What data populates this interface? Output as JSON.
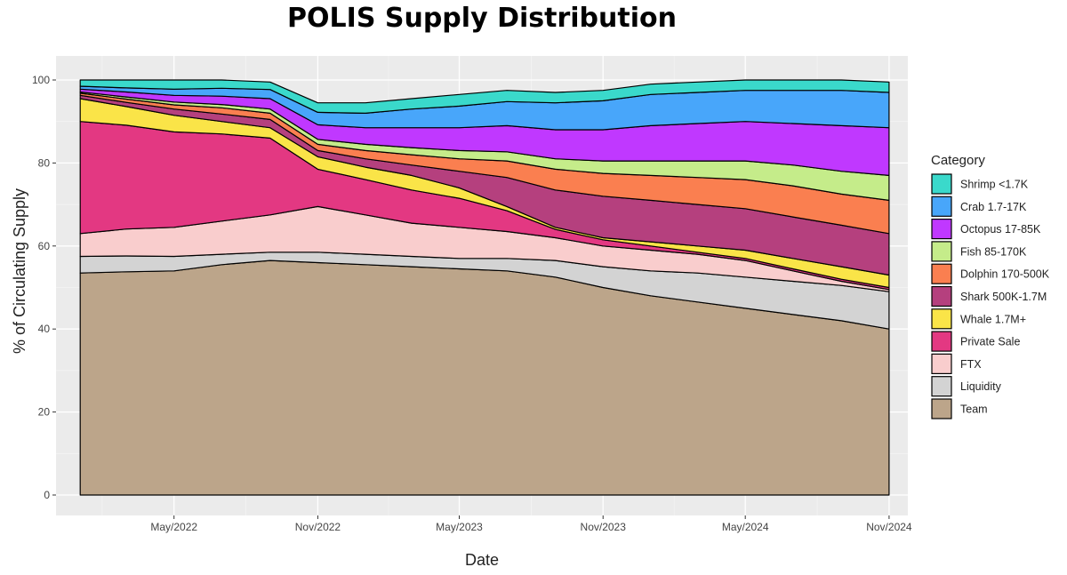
{
  "chart_data": {
    "type": "area",
    "stacked": true,
    "title": "POLIS Supply Distribution",
    "xlabel": "Date",
    "ylabel": "% of Circulating Supply",
    "ylim": [
      0,
      100
    ],
    "yticks": [
      0,
      20,
      40,
      60,
      80,
      100
    ],
    "xlim": [
      "2021-12-01",
      "2024-11-25"
    ],
    "xticks": [
      {
        "date": "2022-05-01",
        "label": "May/2022"
      },
      {
        "date": "2022-11-01",
        "label": "Nov/2022"
      },
      {
        "date": "2023-05-01",
        "label": "May/2023"
      },
      {
        "date": "2023-11-01",
        "label": "Nov/2023"
      },
      {
        "date": "2024-05-01",
        "label": "May/2024"
      },
      {
        "date": "2024-11-01",
        "label": "Nov/2024"
      }
    ],
    "grid": true,
    "legend_position": "right",
    "legend_title": "Category",
    "x": [
      "2022-01-01",
      "2022-03-01",
      "2022-05-01",
      "2022-07-01",
      "2022-09-01",
      "2022-11-01",
      "2023-01-01",
      "2023-03-01",
      "2023-05-01",
      "2023-07-01",
      "2023-09-01",
      "2023-11-01",
      "2024-01-01",
      "2024-03-01",
      "2024-05-01",
      "2024-07-01",
      "2024-09-01",
      "2024-11-01"
    ],
    "series": [
      {
        "name": "Team",
        "color": "#BCA58A",
        "values": [
          53.5,
          53.8,
          54.0,
          55.5,
          56.5,
          56.0,
          55.5,
          55.0,
          54.5,
          54.0,
          52.5,
          50.0,
          48.0,
          46.5,
          45.0,
          43.5,
          42.0,
          40.0
        ]
      },
      {
        "name": "Liquidity",
        "color": "#D3D3D3",
        "values": [
          4.0,
          3.8,
          3.5,
          2.5,
          2.0,
          2.5,
          2.5,
          2.5,
          2.5,
          3.0,
          4.0,
          5.0,
          6.0,
          7.0,
          7.5,
          8.0,
          8.5,
          9.0
        ]
      },
      {
        "name": "FTX",
        "color": "#F9CDCD",
        "values": [
          5.5,
          6.5,
          7.0,
          8.0,
          9.0,
          11.0,
          9.5,
          8.0,
          7.5,
          6.5,
          5.5,
          5.0,
          5.0,
          4.5,
          4.0,
          2.5,
          1.0,
          0.5
        ]
      },
      {
        "name": "Private Sale",
        "color": "#E33882",
        "values": [
          27.0,
          25.0,
          23.0,
          21.0,
          18.5,
          9.0,
          8.5,
          8.0,
          7.0,
          5.0,
          2.0,
          1.5,
          1.0,
          0.5,
          0.5,
          0.5,
          0.5,
          0.5
        ]
      },
      {
        "name": "Whale 1.7M+",
        "color": "#FAE448",
        "values": [
          5.5,
          4.5,
          4.0,
          3.0,
          2.5,
          3.0,
          3.0,
          3.5,
          2.5,
          1.0,
          0.5,
          0.5,
          1.0,
          1.5,
          2.0,
          2.5,
          3.0,
          3.0
        ]
      },
      {
        "name": "Shark 500K-1.7M",
        "color": "#B5407E",
        "values": [
          0.8,
          1.0,
          1.5,
          1.8,
          2.0,
          1.5,
          2.0,
          2.5,
          4.0,
          7.0,
          9.0,
          10.0,
          10.0,
          10.0,
          10.0,
          10.0,
          10.0,
          10.0
        ]
      },
      {
        "name": "Dolphin 170-500K",
        "color": "#FA7F50",
        "values": [
          0.5,
          0.8,
          1.0,
          1.5,
          1.5,
          1.5,
          2.0,
          2.5,
          3.0,
          4.0,
          5.0,
          5.5,
          6.0,
          6.5,
          7.0,
          7.5,
          7.5,
          8.0
        ]
      },
      {
        "name": "Fish 85-170K",
        "color": "#C5EC8A",
        "values": [
          0.3,
          0.5,
          0.7,
          0.8,
          1.0,
          1.2,
          1.5,
          1.7,
          2.0,
          2.2,
          2.5,
          3.0,
          3.5,
          4.0,
          4.5,
          5.0,
          5.5,
          6.0
        ]
      },
      {
        "name": "Octopus 17-85K",
        "color": "#C038FF",
        "values": [
          0.7,
          1.2,
          1.6,
          2.0,
          2.5,
          3.5,
          4.0,
          4.8,
          5.5,
          6.3,
          7.0,
          7.5,
          8.5,
          9.0,
          9.5,
          10.0,
          11.0,
          11.5
        ]
      },
      {
        "name": "Crab 1.7-17K",
        "color": "#48A6FA",
        "values": [
          0.7,
          1.0,
          1.5,
          1.9,
          2.2,
          3.0,
          3.5,
          4.5,
          5.2,
          5.8,
          6.5,
          7.0,
          7.5,
          7.5,
          7.5,
          8.0,
          8.5,
          8.5
        ]
      },
      {
        "name": "Shrimp <1.7K",
        "color": "#3AD9CB",
        "values": [
          1.5,
          1.9,
          2.2,
          2.0,
          1.8,
          2.3,
          2.5,
          2.5,
          2.8,
          2.7,
          2.5,
          2.5,
          2.5,
          2.5,
          2.5,
          2.5,
          2.5,
          2.5
        ]
      }
    ]
  }
}
